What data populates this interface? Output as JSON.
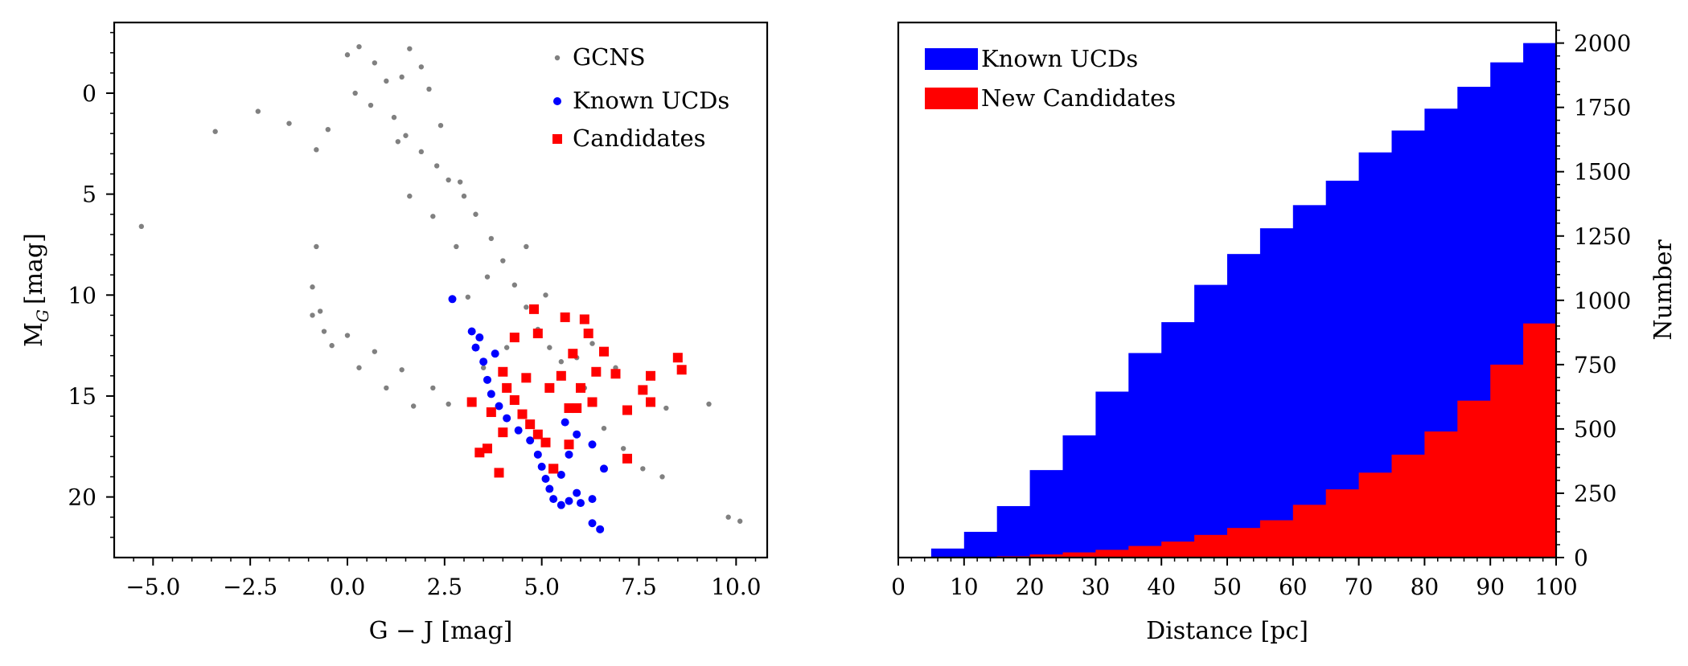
{
  "chart_data": [
    {
      "type": "scatter",
      "title": "",
      "xlabel": "G − J [mag]",
      "ylabel": "M_G [mag]",
      "ylabel_main": "M",
      "ylabel_sub": "G",
      "ylabel_unit": "[mag]",
      "xlim": [
        -6.0,
        10.8
      ],
      "ylim": [
        23.0,
        -3.5
      ],
      "y_inverted": true,
      "x_ticks": [
        -5.0,
        -2.5,
        0.0,
        2.5,
        5.0,
        7.5,
        10.0
      ],
      "x_tick_labels": [
        "−5.0",
        "−2.5",
        "0.0",
        "2.5",
        "5.0",
        "7.5",
        "10.0"
      ],
      "y_ticks": [
        0,
        5,
        10,
        15,
        20
      ],
      "y_tick_labels": [
        "0",
        "5",
        "10",
        "15",
        "20"
      ],
      "legend_position": "top-right",
      "colors": {
        "gcns": "#808080",
        "known": "#0000ff",
        "candidates": "#ff0000"
      },
      "series": [
        {
          "name": "GCNS",
          "marker": "dot",
          "points": [
            [
              0.0,
              -1.9
            ],
            [
              0.3,
              -2.3
            ],
            [
              0.7,
              -1.5
            ],
            [
              1.0,
              -0.6
            ],
            [
              0.2,
              0.0
            ],
            [
              0.6,
              0.6
            ],
            [
              1.2,
              1.2
            ],
            [
              1.5,
              2.1
            ],
            [
              1.9,
              2.9
            ],
            [
              2.3,
              3.6
            ],
            [
              2.6,
              4.3
            ],
            [
              3.0,
              5.1
            ],
            [
              3.3,
              6.0
            ],
            [
              3.7,
              7.2
            ],
            [
              4.0,
              8.3
            ],
            [
              4.3,
              9.5
            ],
            [
              4.6,
              10.6
            ],
            [
              4.9,
              11.7
            ],
            [
              5.2,
              12.6
            ],
            [
              5.5,
              13.3
            ],
            [
              1.6,
              -2.2
            ],
            [
              1.9,
              -1.3
            ],
            [
              1.4,
              -0.8
            ],
            [
              2.1,
              -0.2
            ],
            [
              2.4,
              1.6
            ],
            [
              1.3,
              2.4
            ],
            [
              -0.5,
              1.8
            ],
            [
              -0.8,
              2.8
            ],
            [
              -1.5,
              1.5
            ],
            [
              -2.3,
              0.9
            ],
            [
              -3.4,
              1.9
            ],
            [
              -5.3,
              6.6
            ],
            [
              -0.8,
              7.6
            ],
            [
              -0.9,
              9.6
            ],
            [
              -0.7,
              10.8
            ],
            [
              -0.6,
              11.8
            ],
            [
              0.0,
              12.0
            ],
            [
              0.7,
              12.8
            ],
            [
              1.4,
              13.7
            ],
            [
              2.2,
              14.6
            ],
            [
              2.6,
              15.4
            ],
            [
              1.7,
              15.5
            ],
            [
              1.0,
              14.6
            ],
            [
              0.3,
              13.6
            ],
            [
              -0.4,
              12.5
            ],
            [
              -0.9,
              11.0
            ],
            [
              3.1,
              10.1
            ],
            [
              3.6,
              9.1
            ],
            [
              2.8,
              7.6
            ],
            [
              2.2,
              6.1
            ],
            [
              1.6,
              5.1
            ],
            [
              2.9,
              4.4
            ],
            [
              4.6,
              7.6
            ],
            [
              5.6,
              11.0
            ],
            [
              6.3,
              12.4
            ],
            [
              6.9,
              13.6
            ],
            [
              7.6,
              14.6
            ],
            [
              8.2,
              15.6
            ],
            [
              9.3,
              15.4
            ],
            [
              9.8,
              21.0
            ],
            [
              10.1,
              21.2
            ],
            [
              8.1,
              19.0
            ],
            [
              7.6,
              18.6
            ],
            [
              7.1,
              17.6
            ],
            [
              6.6,
              16.6
            ],
            [
              6.1,
              14.6
            ],
            [
              5.9,
              13.1
            ],
            [
              5.1,
              10.0
            ],
            [
              4.1,
              12.6
            ],
            [
              3.5,
              13.6
            ]
          ]
        },
        {
          "name": "Known UCDs",
          "marker": "circle",
          "points": [
            [
              2.7,
              10.2
            ],
            [
              3.2,
              11.8
            ],
            [
              3.3,
              12.6
            ],
            [
              3.5,
              13.3
            ],
            [
              3.6,
              14.2
            ],
            [
              3.7,
              14.9
            ],
            [
              3.9,
              15.5
            ],
            [
              4.1,
              16.1
            ],
            [
              4.4,
              16.7
            ],
            [
              4.7,
              17.2
            ],
            [
              4.9,
              17.9
            ],
            [
              5.0,
              18.5
            ],
            [
              5.1,
              19.1
            ],
            [
              5.2,
              19.6
            ],
            [
              5.3,
              20.1
            ],
            [
              5.5,
              20.4
            ],
            [
              5.7,
              20.2
            ],
            [
              5.9,
              19.8
            ],
            [
              6.0,
              20.3
            ],
            [
              6.3,
              20.1
            ],
            [
              6.3,
              21.3
            ],
            [
              6.5,
              21.6
            ],
            [
              6.6,
              18.6
            ],
            [
              6.3,
              17.4
            ],
            [
              5.9,
              16.9
            ],
            [
              5.7,
              17.9
            ],
            [
              5.5,
              18.9
            ],
            [
              5.6,
              16.3
            ],
            [
              3.4,
              12.1
            ],
            [
              3.8,
              12.9
            ]
          ]
        },
        {
          "name": "Candidates",
          "marker": "square",
          "points": [
            [
              3.2,
              15.3
            ],
            [
              3.4,
              17.8
            ],
            [
              3.6,
              17.6
            ],
            [
              3.9,
              18.8
            ],
            [
              4.0,
              13.8
            ],
            [
              4.1,
              14.6
            ],
            [
              4.3,
              15.2
            ],
            [
              4.5,
              15.9
            ],
            [
              4.7,
              16.4
            ],
            [
              4.9,
              16.9
            ],
            [
              5.1,
              17.3
            ],
            [
              5.3,
              18.6
            ],
            [
              4.3,
              12.1
            ],
            [
              4.8,
              10.7
            ],
            [
              4.9,
              11.9
            ],
            [
              5.6,
              11.1
            ],
            [
              5.8,
              12.9
            ],
            [
              6.1,
              11.2
            ],
            [
              6.2,
              11.9
            ],
            [
              6.6,
              12.8
            ],
            [
              6.4,
              13.8
            ],
            [
              6.9,
              13.9
            ],
            [
              6.0,
              14.6
            ],
            [
              6.3,
              15.3
            ],
            [
              5.9,
              15.6
            ],
            [
              5.7,
              15.6
            ],
            [
              5.5,
              14.0
            ],
            [
              5.2,
              14.6
            ],
            [
              7.2,
              15.7
            ],
            [
              7.6,
              14.7
            ],
            [
              7.8,
              15.3
            ],
            [
              7.8,
              14.0
            ],
            [
              8.5,
              13.1
            ],
            [
              8.6,
              13.7
            ],
            [
              7.2,
              18.1
            ],
            [
              5.3,
              18.6
            ],
            [
              4.6,
              14.1
            ],
            [
              3.7,
              15.8
            ],
            [
              4.0,
              16.8
            ],
            [
              5.7,
              17.4
            ]
          ]
        }
      ]
    },
    {
      "type": "histogram",
      "title": "",
      "xlabel": "Distance [pc]",
      "ylabel": "Number",
      "xlim": [
        0,
        100
      ],
      "ylim": [
        0,
        2080
      ],
      "y_axis_side": "right",
      "x_ticks": [
        0,
        10,
        20,
        30,
        40,
        50,
        60,
        70,
        80,
        90,
        100
      ],
      "x_tick_labels": [
        "0",
        "10",
        "20",
        "30",
        "40",
        "50",
        "60",
        "70",
        "80",
        "90",
        "100"
      ],
      "y_ticks": [
        0,
        250,
        500,
        750,
        1000,
        1250,
        1500,
        1750,
        2000
      ],
      "y_tick_labels": [
        "0",
        "250",
        "500",
        "750",
        "1000",
        "1250",
        "1500",
        "1750",
        "2000"
      ],
      "legend_position": "top-left",
      "bin_edges": [
        0,
        5,
        10,
        15,
        20,
        25,
        30,
        35,
        40,
        45,
        50,
        55,
        60,
        65,
        70,
        75,
        80,
        85,
        90,
        95,
        100
      ],
      "colors": {
        "known": "#0000ff",
        "new": "#ff0000"
      },
      "series": [
        {
          "name": "Known UCDs",
          "values": [
            0,
            35,
            100,
            200,
            340,
            475,
            645,
            795,
            915,
            1060,
            1180,
            1280,
            1370,
            1465,
            1575,
            1660,
            1745,
            1830,
            1925,
            2000
          ]
        },
        {
          "name": "New Candidates",
          "values": [
            0,
            0,
            2,
            5,
            12,
            20,
            30,
            45,
            62,
            88,
            115,
            145,
            205,
            265,
            330,
            400,
            490,
            610,
            750,
            910
          ]
        }
      ]
    }
  ]
}
